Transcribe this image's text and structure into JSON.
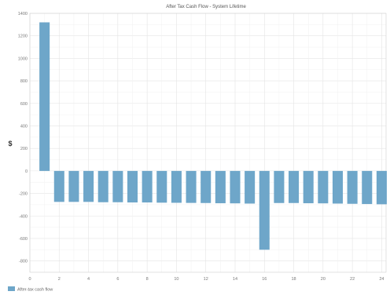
{
  "chart_data": {
    "type": "bar",
    "title": "After Tax Cash Flow - System Lifetime",
    "ylabel": "$",
    "xlabel": "",
    "xlim": [
      0,
      24.3
    ],
    "ylim": [
      -900,
      1400
    ],
    "xticks": [
      0,
      2,
      4,
      6,
      8,
      10,
      12,
      14,
      16,
      18,
      20,
      22,
      24
    ],
    "yticks": [
      -800,
      -600,
      -400,
      -200,
      0,
      200,
      400,
      600,
      800,
      1000,
      1200,
      1400
    ],
    "categories": [
      1,
      2,
      3,
      4,
      5,
      6,
      7,
      8,
      9,
      10,
      11,
      12,
      13,
      14,
      15,
      16,
      17,
      18,
      19,
      20,
      21,
      22,
      23,
      24
    ],
    "series": [
      {
        "name": "After-tax cash flow",
        "color": "#6ea6c9",
        "values": [
          1320,
          -275,
          -275,
          -275,
          -278,
          -278,
          -280,
          -280,
          -282,
          -283,
          -284,
          -285,
          -287,
          -288,
          -290,
          -700,
          -285,
          -285,
          -287,
          -288,
          -290,
          -292,
          -294,
          -296
        ]
      }
    ],
    "grid": true,
    "legend": "bottom-left"
  }
}
